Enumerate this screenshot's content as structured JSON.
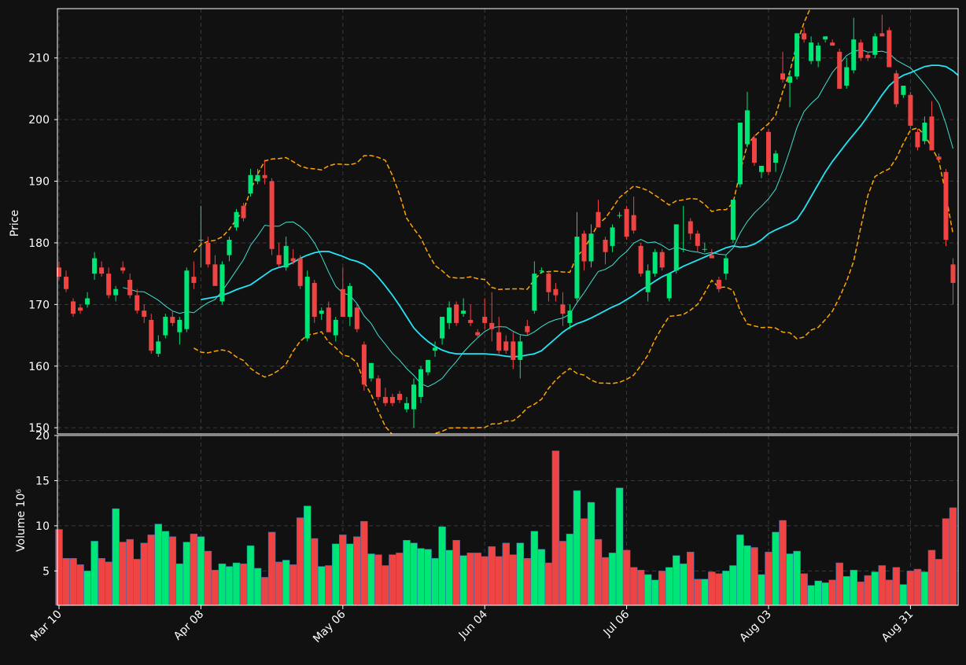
{
  "chart_data": [
    {
      "type": "candlestick",
      "title": "",
      "ylabel": "Price",
      "ylim": [
        149,
        218
      ],
      "yticks": [
        150,
        160,
        170,
        180,
        190,
        200,
        210
      ],
      "xticks": [
        "Mar 10",
        "Apr 08",
        "May 06",
        "Jun 04",
        "Jul 06",
        "Aug 03",
        "Aug 31"
      ],
      "xtick_index": [
        0,
        20,
        40,
        60,
        80,
        100,
        120
      ],
      "grid": true,
      "up_color": "#00e676",
      "down_color": "#ef4444",
      "candles": [
        {
          "o": 176,
          "h": 177,
          "l": 174,
          "c": 174.5
        },
        {
          "o": 174.5,
          "h": 175.5,
          "l": 172,
          "c": 172.5
        },
        {
          "o": 170.5,
          "h": 171,
          "l": 168,
          "c": 168.5
        },
        {
          "o": 169.5,
          "h": 170,
          "l": 168.5,
          "c": 169
        },
        {
          "o": 170,
          "h": 172,
          "l": 169.5,
          "c": 171
        },
        {
          "o": 175,
          "h": 178.5,
          "l": 174,
          "c": 177.5
        },
        {
          "o": 176,
          "h": 177,
          "l": 174.5,
          "c": 175
        },
        {
          "o": 175,
          "h": 176,
          "l": 171,
          "c": 171.5
        },
        {
          "o": 171.5,
          "h": 173,
          "l": 170.5,
          "c": 172.5
        },
        {
          "o": 176,
          "h": 177,
          "l": 175,
          "c": 175.5
        },
        {
          "o": 174,
          "h": 175,
          "l": 171,
          "c": 171.5
        },
        {
          "o": 171.5,
          "h": 172.5,
          "l": 168.5,
          "c": 169
        },
        {
          "o": 169,
          "h": 170,
          "l": 167,
          "c": 168
        },
        {
          "o": 167.5,
          "h": 168.5,
          "l": 162,
          "c": 162.5
        },
        {
          "o": 162,
          "h": 165,
          "l": 161.5,
          "c": 164
        },
        {
          "o": 165,
          "h": 168.5,
          "l": 164.5,
          "c": 168
        },
        {
          "o": 168,
          "h": 169,
          "l": 166.5,
          "c": 167
        },
        {
          "o": 165.5,
          "h": 168,
          "l": 163.5,
          "c": 167.5
        },
        {
          "o": 166,
          "h": 176,
          "l": 165.5,
          "c": 175.5
        },
        {
          "o": 174.5,
          "h": 177,
          "l": 172.5,
          "c": 173.5
        },
        {
          "o": 180.5,
          "h": 186,
          "l": 176,
          "c": 180.5
        },
        {
          "o": 180,
          "h": 181,
          "l": 176,
          "c": 176.5
        },
        {
          "o": 176.5,
          "h": 178,
          "l": 173.5,
          "c": 173
        },
        {
          "o": 170.5,
          "h": 177,
          "l": 170,
          "c": 176.5
        },
        {
          "o": 178,
          "h": 181,
          "l": 177,
          "c": 180.5
        },
        {
          "o": 182.5,
          "h": 185.5,
          "l": 182,
          "c": 185
        },
        {
          "o": 186,
          "h": 186.5,
          "l": 183.5,
          "c": 184
        },
        {
          "o": 188,
          "h": 192,
          "l": 187.5,
          "c": 191
        },
        {
          "o": 190,
          "h": 192,
          "l": 189.5,
          "c": 191
        },
        {
          "o": 191,
          "h": 193.5,
          "l": 189.5,
          "c": 190.5
        },
        {
          "o": 190,
          "h": 190.5,
          "l": 178,
          "c": 179
        },
        {
          "o": 178,
          "h": 180,
          "l": 176,
          "c": 176.5
        },
        {
          "o": 176,
          "h": 181,
          "l": 175.5,
          "c": 179.5
        },
        {
          "o": 177.5,
          "h": 179,
          "l": 176.5,
          "c": 177
        },
        {
          "o": 177.5,
          "h": 178,
          "l": 172.5,
          "c": 173
        },
        {
          "o": 164.5,
          "h": 175.5,
          "l": 164,
          "c": 174.5
        },
        {
          "o": 173.5,
          "h": 174,
          "l": 167,
          "c": 168
        },
        {
          "o": 168.5,
          "h": 169.5,
          "l": 167.5,
          "c": 169
        },
        {
          "o": 169.5,
          "h": 170.5,
          "l": 165.5,
          "c": 165.5
        },
        {
          "o": 165,
          "h": 168,
          "l": 164,
          "c": 167.5
        },
        {
          "o": 172.5,
          "h": 176,
          "l": 168.5,
          "c": 168
        },
        {
          "o": 168,
          "h": 173.5,
          "l": 166.5,
          "c": 173
        },
        {
          "o": 169.5,
          "h": 170,
          "l": 165.5,
          "c": 166
        },
        {
          "o": 163.5,
          "h": 164,
          "l": 156,
          "c": 157
        },
        {
          "o": 158,
          "h": 160.5,
          "l": 157.5,
          "c": 160.5
        },
        {
          "o": 158,
          "h": 158.5,
          "l": 154.5,
          "c": 155
        },
        {
          "o": 155,
          "h": 156.5,
          "l": 153.5,
          "c": 154
        },
        {
          "o": 155,
          "h": 155.5,
          "l": 153.5,
          "c": 154
        },
        {
          "o": 155.5,
          "h": 156,
          "l": 154,
          "c": 154.5
        },
        {
          "o": 153,
          "h": 155,
          "l": 152.5,
          "c": 154
        },
        {
          "o": 153,
          "h": 158,
          "l": 150,
          "c": 157
        },
        {
          "o": 155,
          "h": 160,
          "l": 154,
          "c": 159.5
        },
        {
          "o": 159,
          "h": 161,
          "l": 158.5,
          "c": 161
        },
        {
          "o": 162.5,
          "h": 164,
          "l": 161.5,
          "c": 163
        },
        {
          "o": 164.5,
          "h": 168,
          "l": 163.5,
          "c": 168
        },
        {
          "o": 167,
          "h": 170.5,
          "l": 166,
          "c": 169.5
        },
        {
          "o": 170,
          "h": 170.5,
          "l": 166.5,
          "c": 167
        },
        {
          "o": 168.5,
          "h": 171,
          "l": 168,
          "c": 169
        },
        {
          "o": 167.5,
          "h": 170,
          "l": 166.5,
          "c": 167
        },
        {
          "o": 165.5,
          "h": 166,
          "l": 164.5,
          "c": 165
        },
        {
          "o": 168,
          "h": 171,
          "l": 166,
          "c": 167
        },
        {
          "o": 167,
          "h": 172,
          "l": 164,
          "c": 166
        },
        {
          "o": 165.5,
          "h": 168,
          "l": 162,
          "c": 162.5
        },
        {
          "o": 164,
          "h": 165,
          "l": 162,
          "c": 162.5
        },
        {
          "o": 164,
          "h": 165.5,
          "l": 159.5,
          "c": 161
        },
        {
          "o": 161,
          "h": 165,
          "l": 158,
          "c": 164
        },
        {
          "o": 166.5,
          "h": 167.5,
          "l": 165,
          "c": 165.5
        },
        {
          "o": 169,
          "h": 177,
          "l": 168.5,
          "c": 175
        },
        {
          "o": 175.5,
          "h": 176,
          "l": 175,
          "c": 175.5
        },
        {
          "o": 175,
          "h": 175.5,
          "l": 170.5,
          "c": 172
        },
        {
          "o": 172.5,
          "h": 173.5,
          "l": 170.5,
          "c": 171.5
        },
        {
          "o": 170,
          "h": 172,
          "l": 166.5,
          "c": 168.5
        },
        {
          "o": 167,
          "h": 170,
          "l": 166,
          "c": 169
        },
        {
          "o": 171,
          "h": 185,
          "l": 170.5,
          "c": 181
        },
        {
          "o": 181.5,
          "h": 182,
          "l": 175.5,
          "c": 177
        },
        {
          "o": 177,
          "h": 183,
          "l": 176,
          "c": 181.5
        },
        {
          "o": 185,
          "h": 187,
          "l": 182.5,
          "c": 182.5
        },
        {
          "o": 180.5,
          "h": 181,
          "l": 176.5,
          "c": 178.5
        },
        {
          "o": 179.5,
          "h": 183,
          "l": 178.5,
          "c": 182.5
        },
        {
          "o": 184.5,
          "h": 185,
          "l": 184,
          "c": 184.5
        },
        {
          "o": 185.5,
          "h": 186,
          "l": 180.5,
          "c": 181
        },
        {
          "o": 184.5,
          "h": 187.5,
          "l": 181.5,
          "c": 182
        },
        {
          "o": 179.5,
          "h": 180,
          "l": 174.5,
          "c": 175
        },
        {
          "o": 172,
          "h": 176.5,
          "l": 170.5,
          "c": 175.5
        },
        {
          "o": 175,
          "h": 179,
          "l": 174.5,
          "c": 178.5
        },
        {
          "o": 178.5,
          "h": 179,
          "l": 175.5,
          "c": 176
        },
        {
          "o": 171,
          "h": 175,
          "l": 170.5,
          "c": 175
        },
        {
          "o": 175.5,
          "h": 183,
          "l": 175,
          "c": 183
        },
        {
          "o": 179,
          "h": 186,
          "l": 178.5,
          "c": 179
        },
        {
          "o": 183.5,
          "h": 184,
          "l": 180.5,
          "c": 181.5
        },
        {
          "o": 181.5,
          "h": 182,
          "l": 178.5,
          "c": 179.5
        },
        {
          "o": 179,
          "h": 180,
          "l": 178.5,
          "c": 179
        },
        {
          "o": 178,
          "h": 179,
          "l": 177.5,
          "c": 177.5
        },
        {
          "o": 174,
          "h": 174.5,
          "l": 172,
          "c": 172.5
        },
        {
          "o": 175,
          "h": 178,
          "l": 174,
          "c": 177.5
        },
        {
          "o": 180.5,
          "h": 187,
          "l": 180,
          "c": 187
        },
        {
          "o": 189.5,
          "h": 199.5,
          "l": 189,
          "c": 199.5
        },
        {
          "o": 196,
          "h": 204.5,
          "l": 195.5,
          "c": 201.5
        },
        {
          "o": 197,
          "h": 197.5,
          "l": 192.5,
          "c": 193
        },
        {
          "o": 191.5,
          "h": 192.5,
          "l": 190.5,
          "c": 192.5
        },
        {
          "o": 198,
          "h": 198.5,
          "l": 191,
          "c": 191.5
        },
        {
          "o": 193,
          "h": 195,
          "l": 191.5,
          "c": 194.5
        },
        {
          "o": 207.5,
          "h": 211,
          "l": 206,
          "c": 206.5
        },
        {
          "o": 206,
          "h": 208,
          "l": 202,
          "c": 207
        },
        {
          "o": 207,
          "h": 214,
          "l": 206.5,
          "c": 214
        },
        {
          "o": 214,
          "h": 215,
          "l": 212.5,
          "c": 213
        },
        {
          "o": 209.5,
          "h": 213.5,
          "l": 209,
          "c": 212.5
        },
        {
          "o": 209.5,
          "h": 212.5,
          "l": 208.5,
          "c": 212
        },
        {
          "o": 213,
          "h": 213.5,
          "l": 212.5,
          "c": 213.5
        },
        {
          "o": 212.5,
          "h": 213,
          "l": 212,
          "c": 212
        },
        {
          "o": 211,
          "h": 211.5,
          "l": 205,
          "c": 205
        },
        {
          "o": 205.5,
          "h": 210,
          "l": 205,
          "c": 208.5
        },
        {
          "o": 208,
          "h": 216.5,
          "l": 207.5,
          "c": 213
        },
        {
          "o": 212.5,
          "h": 213,
          "l": 209.5,
          "c": 210
        },
        {
          "o": 210.5,
          "h": 211,
          "l": 209.5,
          "c": 210
        },
        {
          "o": 210.5,
          "h": 214,
          "l": 210,
          "c": 213.5
        },
        {
          "o": 214,
          "h": 217,
          "l": 213.5,
          "c": 213.5
        },
        {
          "o": 214.5,
          "h": 215,
          "l": 208.5,
          "c": 208.5
        },
        {
          "o": 207.5,
          "h": 208,
          "l": 202,
          "c": 202.5
        },
        {
          "o": 204,
          "h": 205.5,
          "l": 203.5,
          "c": 205.5
        },
        {
          "o": 204,
          "h": 204.5,
          "l": 198.5,
          "c": 199
        },
        {
          "o": 198,
          "h": 198.5,
          "l": 195,
          "c": 195.5
        },
        {
          "o": 196.5,
          "h": 200.5,
          "l": 196,
          "c": 199.5
        },
        {
          "o": 200.5,
          "h": 203,
          "l": 195,
          "c": 195
        },
        {
          "o": 194,
          "h": 194.5,
          "l": 193,
          "c": 193.5
        },
        {
          "o": 191.5,
          "h": 192,
          "l": 179.5,
          "c": 180.5
        },
        {
          "o": 176.5,
          "h": 177.5,
          "l": 170,
          "c": 173.5
        }
      ],
      "ma_slow": [
        null,
        null,
        null,
        null,
        null,
        null,
        null,
        null,
        null,
        null,
        null,
        null,
        null,
        null,
        null,
        null,
        null,
        null,
        null,
        null,
        170.8,
        171.0,
        171.2,
        171.5,
        171.9,
        172.4,
        172.8,
        173.2,
        174.0,
        174.8,
        175.6,
        176.0,
        176.3,
        176.8,
        177.5,
        178.0,
        178.4,
        178.6,
        178.6,
        178.2,
        177.8,
        177.3,
        177.0,
        176.5,
        175.6,
        174.4,
        173.0,
        171.5,
        169.8,
        168.0,
        166.2,
        165.0,
        164.0,
        163.2,
        162.6,
        162.2,
        162.0,
        162.0,
        162.0,
        162.0,
        162.0,
        161.9,
        161.8,
        161.6,
        161.5,
        161.6,
        161.8,
        162.0,
        162.5,
        163.5,
        164.5,
        165.5,
        166.3,
        166.9,
        167.3,
        167.8,
        168.4,
        169.0,
        169.6,
        170.1,
        170.8,
        171.5,
        172.3,
        173.0,
        173.8,
        174.5,
        175.0,
        175.6,
        176.2,
        176.7,
        177.2,
        177.7,
        178.2,
        178.7,
        179.2,
        179.5,
        179.3,
        179.4,
        179.8,
        180.5,
        181.5,
        182.1,
        182.6,
        183.1,
        183.8,
        185.5,
        187.5,
        189.5,
        191.5,
        193.2,
        194.7,
        196.2,
        197.6,
        199.0,
        200.6,
        202.3,
        204.0,
        205.5,
        206.5,
        207.2,
        207.6,
        208.1,
        208.6,
        208.8,
        208.8,
        208.6,
        207.9,
        206.9,
        205.2,
        203.3
      ]
    },
    {
      "type": "bar",
      "title": "",
      "ylabel": "Volume  10⁶",
      "ylim": [
        1.2,
        20
      ],
      "yticks": [
        5,
        10,
        15,
        20
      ],
      "grid": true,
      "values": [
        9.6,
        6.4,
        6.4,
        5.7,
        5.0,
        8.3,
        6.4,
        6.0,
        11.9,
        8.2,
        8.5,
        6.3,
        8.1,
        9.0,
        10.2,
        9.4,
        8.8,
        5.8,
        8.2,
        9.1,
        8.8,
        7.2,
        5.1,
        5.8,
        5.5,
        5.9,
        5.8,
        7.8,
        5.3,
        4.3,
        9.3,
        6.0,
        6.2,
        5.7,
        10.9,
        12.2,
        8.6,
        5.5,
        5.6,
        8.0,
        9.0,
        8.0,
        8.8,
        10.5,
        6.9,
        6.8,
        5.6,
        6.8,
        7.0,
        8.4,
        8.1,
        7.5,
        7.4,
        6.4,
        9.9,
        7.3,
        8.4,
        6.7,
        7.0,
        7.0,
        6.6,
        7.7,
        6.6,
        8.1,
        6.8,
        8.1,
        6.4,
        9.4,
        7.4,
        5.9,
        18.3,
        8.3,
        9.1,
        13.9,
        10.8,
        12.6,
        8.5,
        6.5,
        7.0,
        14.2,
        7.3,
        5.4,
        5.1,
        4.6,
        4.0,
        5.0,
        5.4,
        6.7,
        5.8,
        7.1,
        4.1,
        4.1,
        4.9,
        4.7,
        5.0,
        5.6,
        9.0,
        7.8,
        7.6,
        4.6,
        7.1,
        9.3,
        10.6,
        6.9,
        7.2,
        4.7,
        3.4,
        3.9,
        3.7,
        4.0,
        5.9,
        4.4,
        5.1,
        3.8,
        4.5,
        4.9,
        5.6,
        4.0,
        5.4,
        3.5,
        5.0,
        5.2,
        4.9,
        7.3,
        6.3,
        10.8,
        12.0
      ]
    }
  ]
}
